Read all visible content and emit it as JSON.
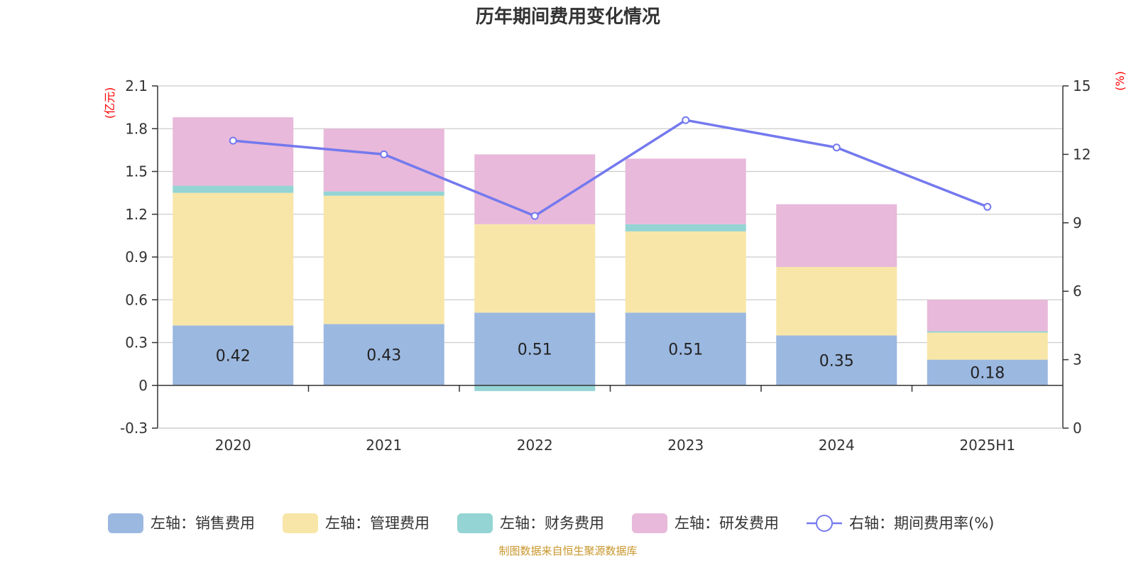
{
  "chart_data": {
    "type": "bar",
    "title": "历年期间费用变化情况",
    "categories": [
      "2020",
      "2021",
      "2022",
      "2023",
      "2024",
      "2025H1"
    ],
    "left_axis": {
      "unit": "(亿元)",
      "ylim": [
        -0.3,
        2.1
      ],
      "ticks": [
        "2.1",
        "1.8",
        "1.5",
        "1.2",
        "0.9",
        "0.6",
        "0.3",
        "0",
        "-0.3"
      ]
    },
    "right_axis": {
      "unit": "(%)",
      "ylim": [
        0,
        15
      ],
      "ticks": [
        "15",
        "12",
        "9",
        "6",
        "3",
        "0"
      ]
    },
    "series": [
      {
        "name": "左轴：销售费用",
        "axis": "left",
        "type": "bar",
        "color": "#9bb8e0",
        "values": [
          0.42,
          0.43,
          0.51,
          0.51,
          0.35,
          0.18
        ],
        "labels": [
          "0.42",
          "0.43",
          "0.51",
          "0.51",
          "0.35",
          "0.18"
        ]
      },
      {
        "name": "左轴：管理费用",
        "axis": "left",
        "type": "bar",
        "color": "#f8e6a8",
        "values": [
          0.93,
          0.9,
          0.62,
          0.57,
          0.48,
          0.19
        ]
      },
      {
        "name": "左轴：财务费用",
        "axis": "left",
        "type": "bar",
        "color": "#94d4d4",
        "values": [
          0.05,
          0.03,
          -0.04,
          0.05,
          0.0,
          0.01
        ]
      },
      {
        "name": "左轴：研发费用",
        "axis": "left",
        "type": "bar",
        "color": "#e8b9da",
        "values": [
          0.48,
          0.44,
          0.49,
          0.46,
          0.44,
          0.22
        ]
      },
      {
        "name": "右轴：期间费用率(%)",
        "axis": "right",
        "type": "line",
        "color": "#7479ee",
        "values": [
          12.6,
          12.0,
          9.3,
          13.5,
          12.3,
          9.7
        ]
      }
    ],
    "grid": true,
    "legend": "bottom"
  },
  "source": "制图数据来自恒生聚源数据库"
}
